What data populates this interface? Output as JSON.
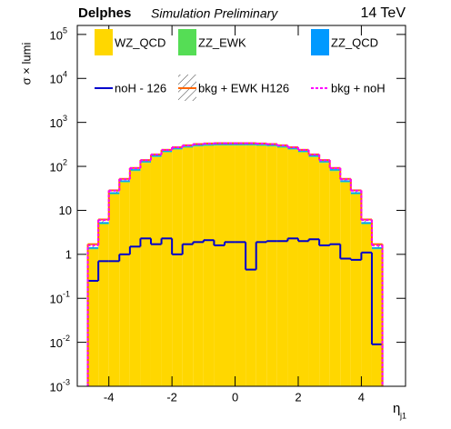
{
  "chart_data": {
    "type": "histogram",
    "title": "Delphes",
    "subtitle": "Simulation Preliminary",
    "energy": "14 TeV",
    "ylabel": "σ × lumi",
    "xlabel": "η",
    "xlabel_subscript": "j1",
    "log_y": true,
    "xlim": [
      -5,
      5.4
    ],
    "ylim": [
      0.001,
      160000
    ],
    "xticks": [
      -4,
      -2,
      0,
      2,
      4
    ],
    "yticks": [
      {
        "value": 0.001,
        "label": "10",
        "power": "-3"
      },
      {
        "value": 0.01,
        "label": "10",
        "power": "-2"
      },
      {
        "value": 0.1,
        "label": "10",
        "power": "-1"
      },
      1,
      10,
      {
        "value": 100,
        "label": "10",
        "power": "2"
      },
      {
        "value": 1000,
        "label": "10",
        "power": "3"
      },
      {
        "value": 10000,
        "label": "10",
        "power": "4"
      },
      {
        "value": 100000,
        "label": "10",
        "power": "5"
      }
    ],
    "bins": [
      -4.667,
      -4.333,
      -4,
      -3.667,
      -3.333,
      -3,
      -2.667,
      -2.333,
      -2,
      -1.667,
      -1.333,
      -1,
      -0.667,
      -0.333,
      0,
      0.333,
      0.667,
      1,
      1.333,
      1.667,
      2,
      2.333,
      2.667,
      3,
      3.333,
      3.667,
      4,
      4.333,
      4.667
    ],
    "series": [
      {
        "name": "WZ_QCD",
        "color": "#ffd700",
        "style": "stack",
        "values": [
          1.3,
          4.8,
          23,
          43,
          78,
          120,
          162,
          208,
          240,
          266,
          284,
          293,
          298,
          298,
          298,
          298,
          293,
          284,
          266,
          240,
          208,
          162,
          120,
          78,
          43,
          23,
          4.8,
          1.3
        ]
      },
      {
        "name": "ZZ_EWK",
        "color": "#55dd55",
        "style": "stack",
        "values": [
          0.05,
          0.2,
          1,
          1.8,
          3,
          4.5,
          6,
          7.5,
          8.5,
          9.5,
          10,
          10,
          10,
          10,
          10,
          10,
          10,
          10,
          9.5,
          8.5,
          7.5,
          6,
          4.5,
          3,
          1.8,
          1,
          0.2,
          0.05
        ]
      },
      {
        "name": "ZZ_QCD",
        "color": "#0099ff",
        "style": "stack",
        "values": [
          0.1,
          0.4,
          1.8,
          3.2,
          5.5,
          8,
          10.5,
          13,
          14.5,
          16,
          17,
          17.5,
          17.5,
          17.5,
          17.5,
          17.5,
          17.5,
          17,
          16,
          14.5,
          13,
          10.5,
          8,
          5.5,
          3.2,
          1.8,
          0.4,
          0.1
        ]
      },
      {
        "name": "noH - 126",
        "color": "#0000cc",
        "style": "line",
        "values": [
          0.25,
          0.7,
          0.7,
          1,
          1.5,
          2.3,
          1.7,
          2.3,
          1,
          1.7,
          1.9,
          2.1,
          1.6,
          1.9,
          1.9,
          0.45,
          1.9,
          2,
          2,
          2.3,
          2,
          2.2,
          1.6,
          1.7,
          0.8,
          0.75,
          1.1,
          0.009
        ]
      },
      {
        "name": "bkg + EWK H126",
        "color": "#ff6600",
        "style": "hatch",
        "values": [
          1.7,
          6.2,
          28.5,
          52,
          92,
          139,
          187,
          238,
          272,
          302,
          322,
          332,
          337,
          337,
          337,
          337,
          332,
          322,
          302,
          272,
          238,
          187,
          139,
          92,
          52,
          28.5,
          6.2,
          1.7
        ]
      },
      {
        "name": "bkg + noH",
        "color": "#ff00ff",
        "style": "dashed",
        "values": [
          1.6,
          6,
          28,
          51,
          91,
          138,
          185,
          236,
          270,
          300,
          320,
          330,
          335,
          335,
          335,
          335,
          330,
          320,
          300,
          270,
          236,
          185,
          138,
          91,
          51,
          28,
          6,
          1.6
        ]
      }
    ]
  }
}
